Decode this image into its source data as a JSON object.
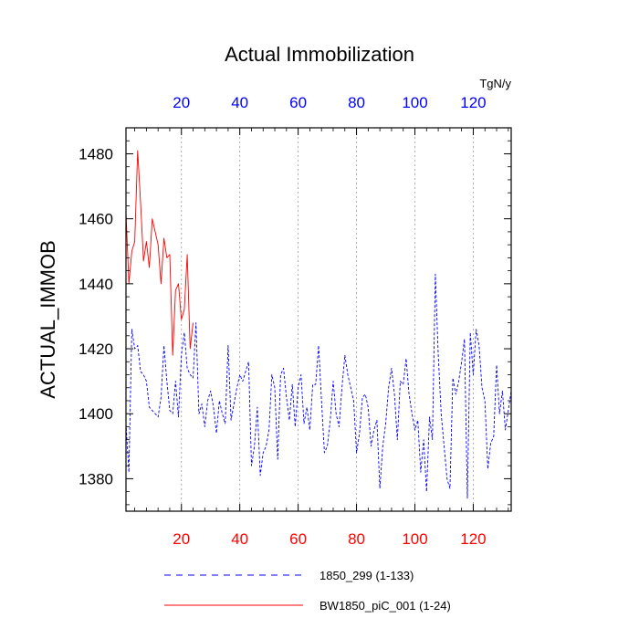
{
  "chart_data": {
    "type": "line",
    "title": "Actual Immobilization",
    "units": "TgN/y",
    "ylabel": "ACTUAL_IMMOB",
    "xlabel": "",
    "xlim": [
      1,
      133
    ],
    "ylim": [
      1370,
      1488
    ],
    "x_ticks": [
      20,
      40,
      60,
      80,
      100,
      120
    ],
    "y_ticks": [
      1380,
      1400,
      1420,
      1440,
      1460,
      1480
    ],
    "grid": "vertical dotted at x ticks",
    "colors": {
      "bottom_axis": "#ff0000",
      "top_axis": "#0000ff",
      "series_1": "#0000ff",
      "series_2": "#ff0000"
    },
    "series": [
      {
        "name": "1850_299 (1-133)",
        "style": "dashed",
        "color": "#0000ff",
        "x_start": 1,
        "values": [
          1397,
          1382,
          1426,
          1420,
          1421,
          1413,
          1412,
          1410,
          1402,
          1401,
          1400,
          1399,
          1405,
          1421,
          1410,
          1401,
          1400,
          1410,
          1399,
          1418,
          1425,
          1414,
          1412,
          1411,
          1428,
          1400,
          1403,
          1396,
          1404,
          1407,
          1402,
          1394,
          1404,
          1400,
          1397,
          1421,
          1398,
          1403,
          1408,
          1412,
          1410,
          1413,
          1416,
          1384,
          1390,
          1402,
          1381,
          1388,
          1390,
          1395,
          1412,
          1408,
          1386,
          1412,
          1414,
          1405,
          1398,
          1409,
          1396,
          1408,
          1412,
          1397,
          1402,
          1395,
          1409,
          1409,
          1421,
          1404,
          1388,
          1390,
          1398,
          1410,
          1400,
          1396,
          1408,
          1418,
          1412,
          1408,
          1404,
          1388,
          1394,
          1405,
          1406,
          1402,
          1390,
          1395,
          1398,
          1377,
          1390,
          1397,
          1408,
          1414,
          1406,
          1392,
          1410,
          1409,
          1417,
          1406,
          1400,
          1395,
          1398,
          1382,
          1392,
          1376,
          1399,
          1392,
          1443,
          1418,
          1400,
          1390,
          1380,
          1377,
          1411,
          1406,
          1410,
          1416,
          1423,
          1374,
          1425,
          1412,
          1426,
          1421,
          1408,
          1404,
          1383,
          1391,
          1393,
          1415,
          1400,
          1407,
          1395,
          1401,
          1407
        ]
      },
      {
        "name": "BW1850_piC_001 (1-24)",
        "style": "solid",
        "color": "#ff0000",
        "x_start": 1,
        "values": [
          1462,
          1440,
          1450,
          1453,
          1481,
          1465,
          1447,
          1453,
          1445,
          1460,
          1456,
          1452,
          1440,
          1454,
          1448,
          1449,
          1418,
          1438,
          1440,
          1429,
          1432,
          1449,
          1420,
          1428
        ]
      }
    ],
    "legend": [
      {
        "label": "1850_299 (1-133)",
        "style": "dashed",
        "color": "#0000ff"
      },
      {
        "label": "BW1850_piC_001 (1-24)",
        "style": "solid",
        "color": "#ff0000"
      }
    ]
  }
}
